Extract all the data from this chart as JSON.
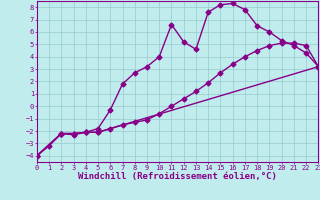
{
  "xlabel": "Windchill (Refroidissement éolien,°C)",
  "bg_color": "#c0ecee",
  "line_color": "#880088",
  "grid_color": "#99cccc",
  "xlim": [
    0,
    23
  ],
  "ylim": [
    -4.5,
    8.5
  ],
  "xticks": [
    0,
    1,
    2,
    3,
    4,
    5,
    6,
    7,
    8,
    9,
    10,
    11,
    12,
    13,
    14,
    15,
    16,
    17,
    18,
    19,
    20,
    21,
    22,
    23
  ],
  "yticks": [
    -4,
    -3,
    -2,
    -1,
    0,
    1,
    2,
    3,
    4,
    5,
    6,
    7,
    8
  ],
  "line1_x": [
    0,
    1,
    2,
    3,
    4,
    5,
    6,
    7,
    8,
    9,
    10,
    11,
    12,
    13,
    14,
    15,
    16,
    17,
    18,
    19,
    20,
    21,
    22,
    23
  ],
  "line1_y": [
    -4.0,
    -3.2,
    -2.2,
    -2.3,
    -2.1,
    -1.8,
    -0.3,
    1.8,
    2.7,
    3.2,
    4.0,
    6.6,
    5.2,
    4.6,
    7.6,
    8.2,
    8.3,
    7.8,
    6.5,
    6.0,
    5.3,
    4.9,
    4.3,
    3.2
  ],
  "line2_x": [
    0,
    2,
    3,
    4,
    5,
    6,
    7,
    8,
    9,
    10,
    11,
    12,
    13,
    14,
    15,
    16,
    17,
    18,
    19,
    20,
    21,
    22,
    23
  ],
  "line2_y": [
    -4.0,
    -2.2,
    -2.2,
    -2.1,
    -2.1,
    -1.8,
    -1.5,
    -1.3,
    -1.1,
    -0.6,
    0.0,
    0.6,
    1.2,
    1.9,
    2.7,
    3.4,
    4.0,
    4.5,
    4.9,
    5.1,
    5.1,
    4.9,
    3.2
  ],
  "line3_x": [
    0,
    2,
    3,
    4,
    5,
    23
  ],
  "line3_y": [
    -4.0,
    -2.2,
    -2.2,
    -2.1,
    -2.1,
    3.2
  ],
  "marker": "D",
  "markersize": 2.5,
  "linewidth": 1.0,
  "tick_fontsize": 5.0,
  "xlabel_fontsize": 6.5,
  "tick_color": "#880088",
  "spine_color": "#880088"
}
